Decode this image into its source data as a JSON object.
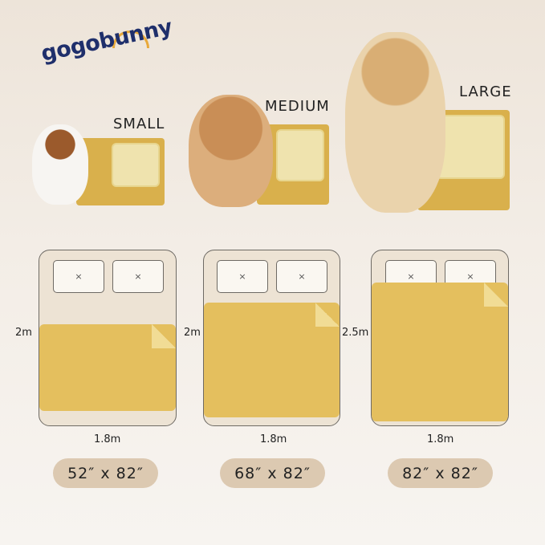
{
  "brand": {
    "logo_text": "gogobunny",
    "colors": {
      "navy": "#1f2f6b",
      "orange": "#e8a93a"
    }
  },
  "sizes": [
    {
      "label": "SMALL",
      "bed_height": "2m",
      "bed_width": "1.8m",
      "dimensions": "52″ x 82″"
    },
    {
      "label": "MEDIUM",
      "bed_height": "2m",
      "bed_width": "1.8m",
      "dimensions": "68″ x 82″"
    },
    {
      "label": "LARGE",
      "bed_height": "2.5m",
      "bed_width": "1.8m",
      "dimensions": "82″ x 82″"
    }
  ],
  "pillow_mark": "×",
  "colors": {
    "pad": "#e4bf5e",
    "pad_fold": "#f1dc95",
    "bed": "#ede3d4",
    "pill": "#dcc9b1"
  }
}
